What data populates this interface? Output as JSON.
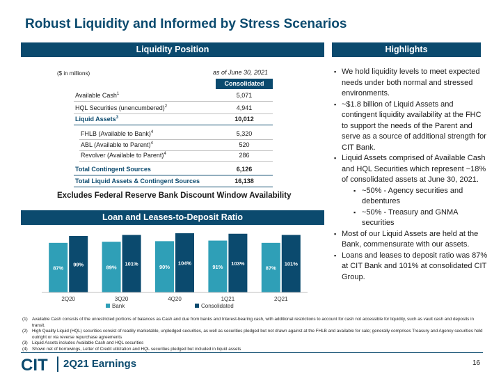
{
  "title": "Robust Liquidity and Informed by Stress Scenarios",
  "liquidity": {
    "header": "Liquidity Position",
    "units": "($ in millions)",
    "as_of": "as of June 30, 2021",
    "col_header": "Consolidated",
    "rows": [
      {
        "label": "Available Cash",
        "sup": "1",
        "value": "5,071"
      },
      {
        "label": "HQL Securities (unencumbered)",
        "sup": "2",
        "value": "4,941"
      },
      {
        "label": "Liquid Assets",
        "sup": "3",
        "value": "10,012"
      },
      {
        "label": "FHLB (Available to Bank)",
        "sup": "4",
        "value": "5,320"
      },
      {
        "label": "ABL (Available to Parent)",
        "sup": "4",
        "value": "520"
      },
      {
        "label": "Revolver (Available to Parent)",
        "sup": "4",
        "value": "286"
      },
      {
        "label": "Total Contingent Sources",
        "sup": "",
        "value": "6,126"
      },
      {
        "label": "Total Liquid Assets & Contingent Sources",
        "sup": "",
        "value": "16,138"
      }
    ],
    "exclusion": "Excludes Federal Reserve Bank Discount Window Availability"
  },
  "highlights": {
    "header": "Highlights",
    "bullets": [
      {
        "level": 1,
        "text": "We hold liquidity levels to meet expected needs under both normal and stressed environments."
      },
      {
        "level": 1,
        "text": "~$1.8 billion of Liquid Assets and contingent liquidity availability at the FHC to support the needs of the Parent and serve as a source of additional strength for CIT Bank."
      },
      {
        "level": 1,
        "text": "Liquid Assets comprised of Available Cash and HQL Securities which represent ~18% of consolidated assets at June 30, 2021."
      },
      {
        "level": 2,
        "text": "~50% - Agency securities and debentures"
      },
      {
        "level": 2,
        "text": "~50% - Treasury and GNMA securities"
      },
      {
        "level": 1,
        "text": "Most of our Liquid Assets are held at the Bank, commensurate with our assets."
      },
      {
        "level": 1,
        "text": "Loans and leases to deposit ratio was 87% at CIT Bank and 101% at consolidated CIT Group."
      }
    ]
  },
  "loan_chart": {
    "header": "Loan and Leases-to-Deposit Ratio"
  },
  "chart_data": {
    "type": "bar",
    "title": "Loan and Leases-to-Deposit Ratio",
    "categories": [
      "2Q20",
      "3Q20",
      "4Q20",
      "1Q21",
      "2Q21"
    ],
    "series": [
      {
        "name": "Bank",
        "values": [
          87,
          89,
          90,
          91,
          87
        ],
        "labels": [
          "87%",
          "89%",
          "90%",
          "91%",
          "87%"
        ],
        "color": "#2f9fb7"
      },
      {
        "name": "Consolidated",
        "values": [
          99,
          101,
          104,
          103,
          101
        ],
        "labels": [
          "99%",
          "101%",
          "104%",
          "103%",
          "101%"
        ],
        "color": "#0b4a6e"
      }
    ],
    "ylim": [
      0,
      110
    ],
    "legend": "bottom",
    "xlabel": "",
    "ylabel": ""
  },
  "footnotes": [
    {
      "n": "(1)",
      "text": "Available Cash consists of the unrestricted portions of balances as Cash and due from banks and Interest-bearing cash, with additional restrictions to account for cash not accessible for liquidity, such as vault cash and deposits in transit."
    },
    {
      "n": "(2)",
      "text": "High Quality Liquid (HQL) securities consist of readily marketable, unpledged securities, as well as securities pledged but not drawn against at the FHLB and available for sale; generally comprises Treasury and Agency securities held outright or via reverse repurchase agreements"
    },
    {
      "n": "(3)",
      "text": "Liquid Assets includes Available Cash and HQL securities"
    },
    {
      "n": "(4)",
      "text": "Shown net of borrowings, Letter of Credit utilization and HQL securities pledged but included in liquid assets"
    }
  ],
  "footer": {
    "logo_text": "CIT",
    "label": "2Q21 Earnings",
    "page": "16"
  },
  "colors": {
    "brand": "#0b4a6e",
    "bank_bar": "#2f9fb7"
  }
}
